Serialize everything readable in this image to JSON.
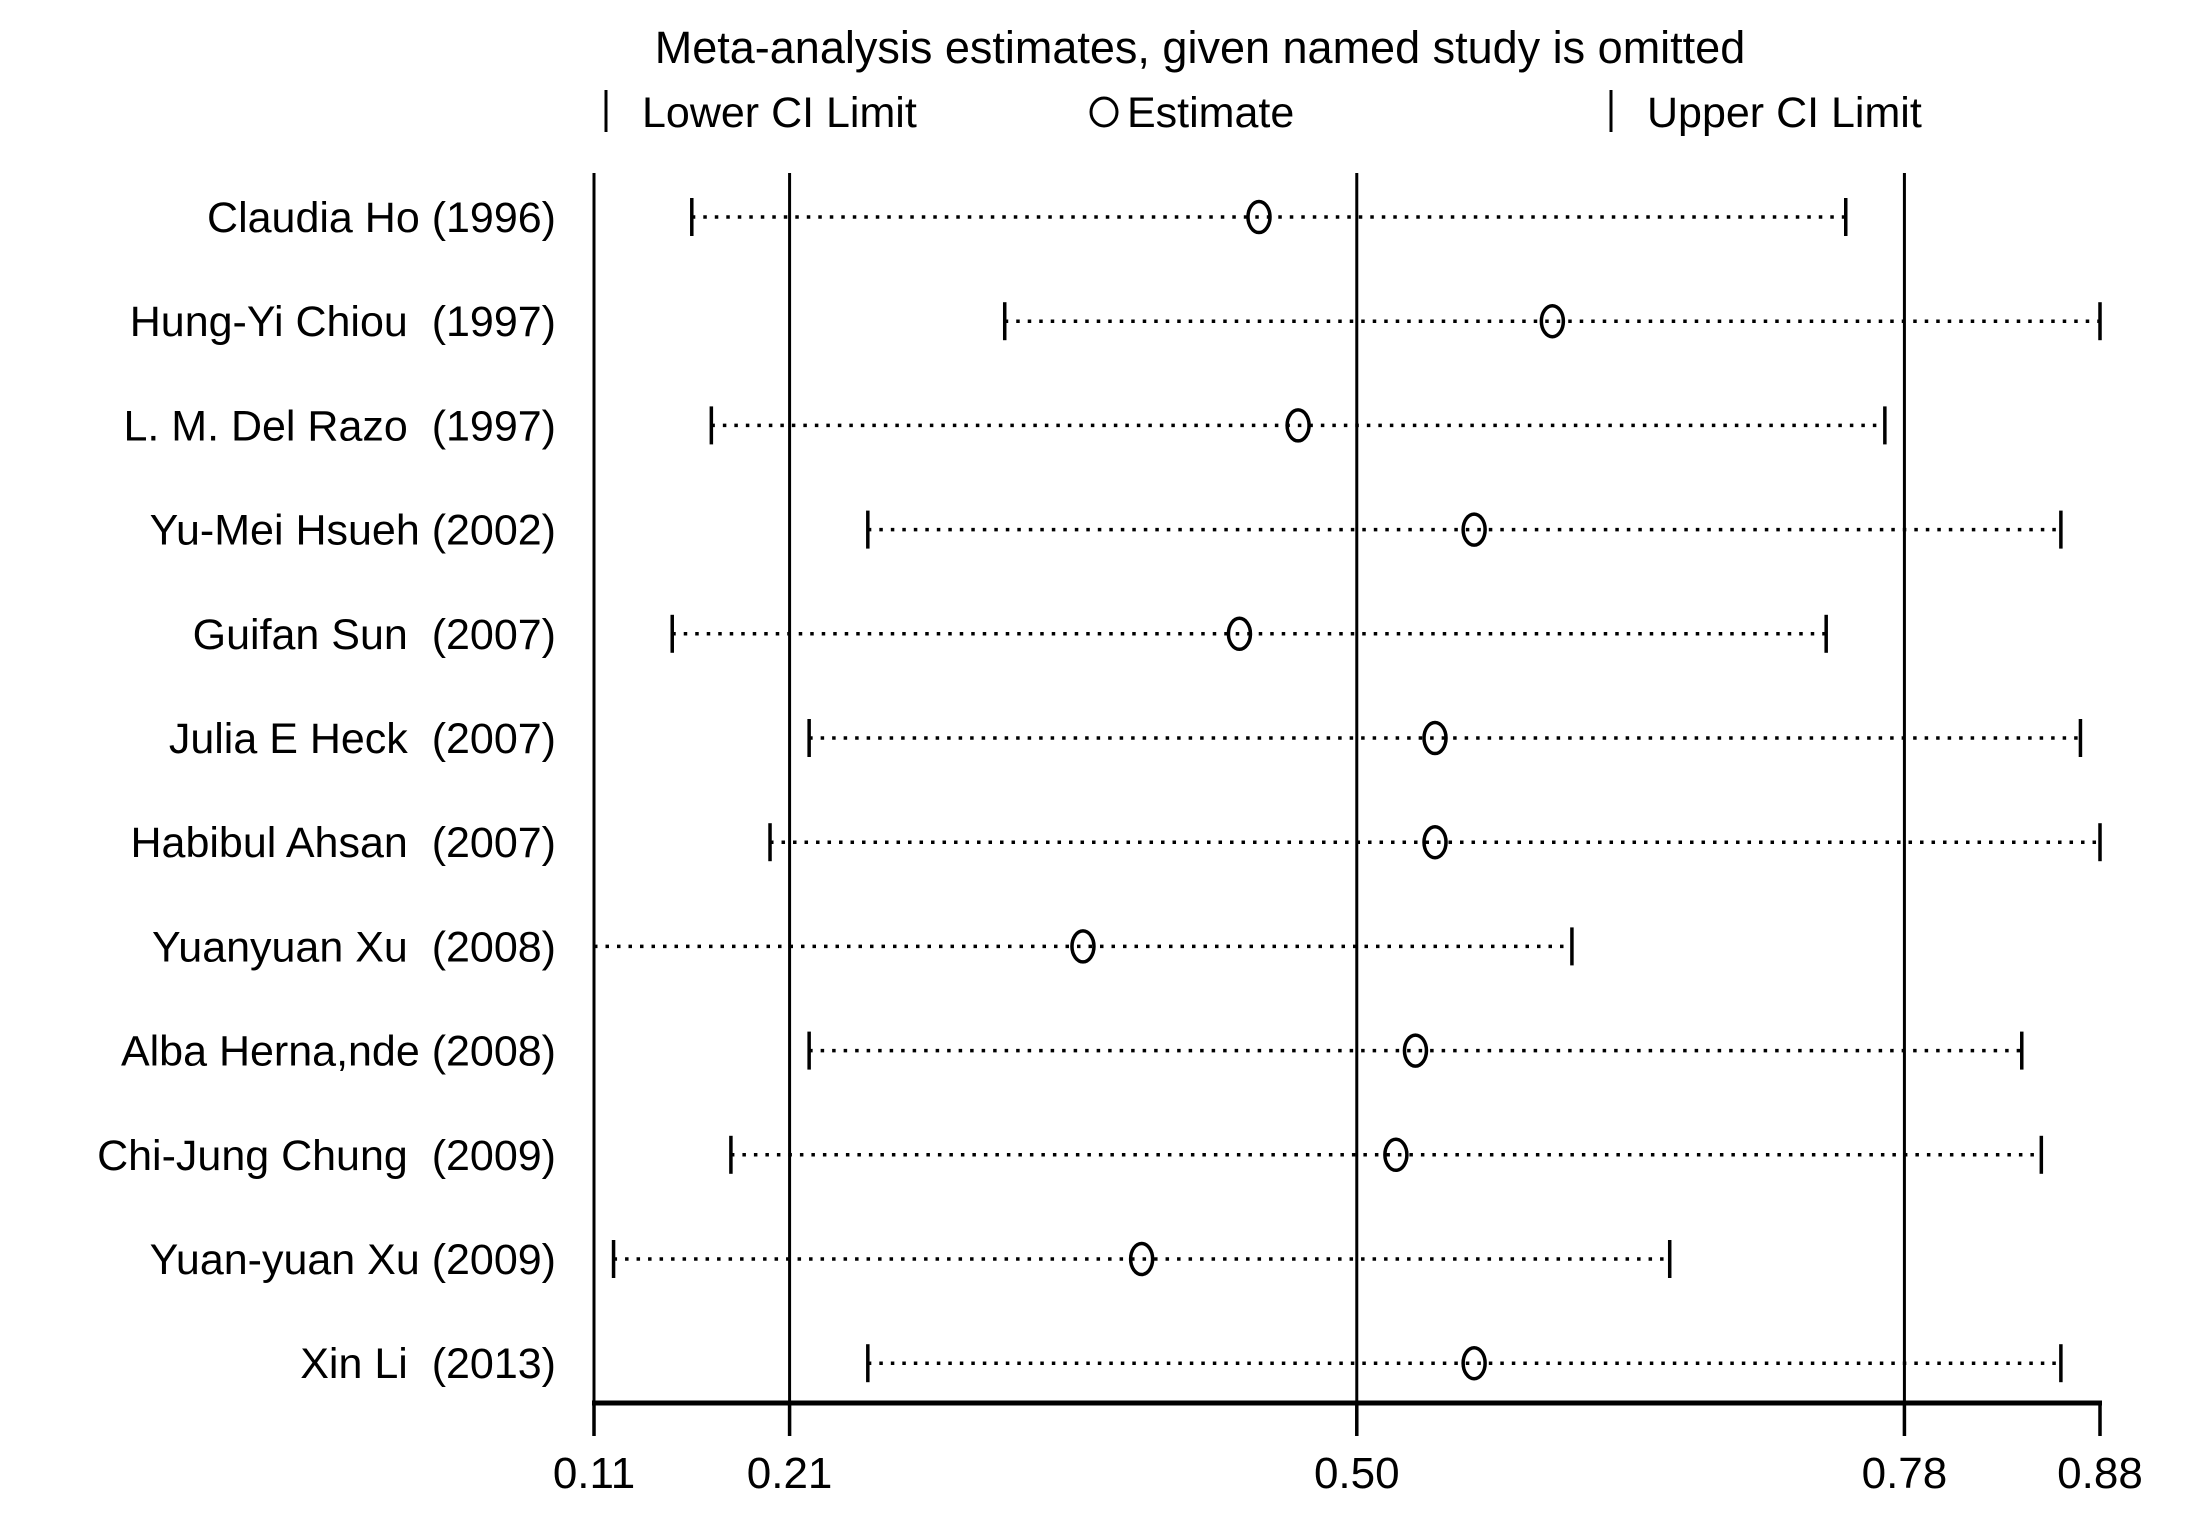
{
  "title": "Meta-analysis estimates, given named study is omitted",
  "legend": {
    "lower": {
      "marker": "vertical-bar-icon",
      "label": "Lower CI Limit"
    },
    "estimate": {
      "marker": "circle-icon",
      "label": "Estimate"
    },
    "upper": {
      "marker": "vertical-bar-icon",
      "label": "Upper CI Limit"
    }
  },
  "colors": {
    "foreground": "#000000",
    "background": "#ffffff"
  },
  "chart_data": {
    "type": "scatter",
    "subtype": "leave-one-out-sensitivity-forest-plot",
    "title": "Meta-analysis estimates, given named study is omitted",
    "xlabel": "",
    "ylabel": "",
    "xlim": [
      0.11,
      0.88
    ],
    "x_ticks": [
      0.11,
      0.21,
      0.5,
      0.78,
      0.88
    ],
    "x_tick_labels": [
      "0.11",
      "0.21",
      "0.50",
      "0.78",
      "0.88"
    ],
    "gridlines_x": [
      0.11,
      0.21,
      0.5,
      0.78
    ],
    "grid": true,
    "legend_position": "top",
    "studies": [
      {
        "label": "Claudia Ho (1996)",
        "lower": 0.16,
        "estimate": 0.45,
        "upper": 0.75
      },
      {
        "label": "Hung-Yi Chiou  (1997)",
        "lower": 0.32,
        "estimate": 0.6,
        "upper": 0.88
      },
      {
        "label": "L. M. Del Razo  (1997)",
        "lower": 0.17,
        "estimate": 0.47,
        "upper": 0.77
      },
      {
        "label": "Yu-Mei Hsueh (2002)",
        "lower": 0.25,
        "estimate": 0.56,
        "upper": 0.86
      },
      {
        "label": "Guifan Sun  (2007)",
        "lower": 0.15,
        "estimate": 0.44,
        "upper": 0.74
      },
      {
        "label": "Julia E Heck  (2007)",
        "lower": 0.22,
        "estimate": 0.54,
        "upper": 0.87
      },
      {
        "label": "Habibul Ahsan  (2007)",
        "lower": 0.2,
        "estimate": 0.54,
        "upper": 0.88
      },
      {
        "label": "Yuanyuan Xu  (2008)",
        "lower": 0.11,
        "estimate": 0.36,
        "upper": 0.61,
        "lower_tick": false
      },
      {
        "label": "Alba Herna,nde (2008)",
        "lower": 0.22,
        "estimate": 0.53,
        "upper": 0.84
      },
      {
        "label": "Chi-Jung Chung  (2009)",
        "lower": 0.18,
        "estimate": 0.52,
        "upper": 0.85
      },
      {
        "label": "Yuan-yuan Xu (2009)",
        "lower": 0.12,
        "estimate": 0.39,
        "upper": 0.66
      },
      {
        "label": "Xin Li  (2013)",
        "lower": 0.25,
        "estimate": 0.56,
        "upper": 0.86
      }
    ]
  }
}
